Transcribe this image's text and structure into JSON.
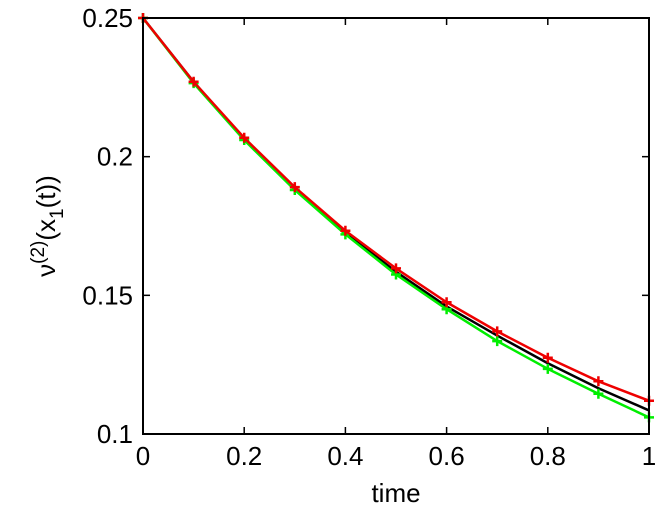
{
  "chart_data": {
    "type": "line",
    "title": "",
    "xlabel": "time",
    "ylabel": {
      "base": "ν",
      "superscript": "(2)",
      "open": "(x",
      "subscript": "1",
      "close": "(t))"
    },
    "xlim": [
      0,
      1
    ],
    "ylim": [
      0.1,
      0.25
    ],
    "x_ticks": [
      {
        "value": 0,
        "label": "0"
      },
      {
        "value": 0.2,
        "label": "0.2"
      },
      {
        "value": 0.4,
        "label": "0.4"
      },
      {
        "value": 0.6,
        "label": "0.6"
      },
      {
        "value": 0.8,
        "label": "0.8"
      },
      {
        "value": 1,
        "label": "1"
      }
    ],
    "y_ticks": [
      {
        "value": 0.1,
        "label": "0.1"
      },
      {
        "value": 0.15,
        "label": "0.15"
      },
      {
        "value": 0.2,
        "label": "0.2"
      },
      {
        "value": 0.25,
        "label": "0.25"
      }
    ],
    "grid": false,
    "x": [
      0,
      0.1,
      0.2,
      0.3,
      0.4,
      0.5,
      0.6,
      0.7,
      0.8,
      0.9,
      1.0
    ],
    "series": [
      {
        "color": "#000000",
        "marker": "none",
        "values": [
          0.25,
          0.227,
          0.2065,
          0.1885,
          0.1725,
          0.1585,
          0.146,
          0.1355,
          0.1255,
          0.1165,
          0.1085
        ]
      },
      {
        "color": "#00ee00",
        "marker": "plus",
        "values": [
          0.25,
          0.2265,
          0.206,
          0.188,
          0.172,
          0.1575,
          0.145,
          0.1335,
          0.1235,
          0.1145,
          0.106
        ]
      },
      {
        "color": "#ee0000",
        "marker": "plus",
        "values": [
          0.25,
          0.227,
          0.2068,
          0.189,
          0.1733,
          0.1597,
          0.1475,
          0.137,
          0.1275,
          0.119,
          0.112
        ]
      }
    ]
  }
}
